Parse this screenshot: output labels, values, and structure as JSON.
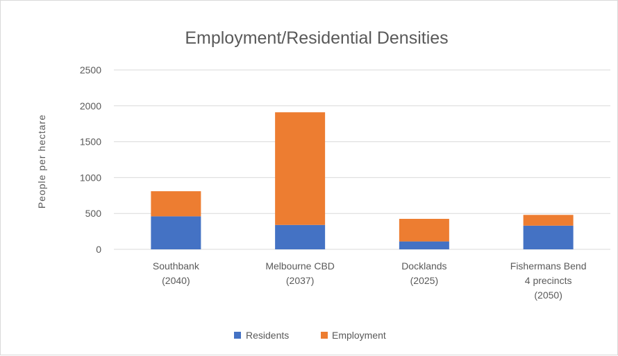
{
  "chart_data": {
    "type": "bar",
    "stacked": true,
    "title": "Employment/Residential Densities",
    "xlabel": "",
    "ylabel": "People per hectare",
    "ylim": [
      0,
      2500
    ],
    "yticks": [
      0,
      500,
      1000,
      1500,
      2000,
      2500
    ],
    "grid": true,
    "legend_position": "bottom",
    "categories": [
      [
        "Southbank",
        "(2040)"
      ],
      [
        "Melbourne CBD",
        "(2037)"
      ],
      [
        "Docklands",
        "(2025)"
      ],
      [
        "Fishermans Bend",
        "4 precincts",
        "(2050)"
      ]
    ],
    "series": [
      {
        "name": "Residents",
        "color": "#4472c4",
        "values": [
          460,
          340,
          110,
          330
        ]
      },
      {
        "name": "Employment",
        "color": "#ed7d31",
        "values": [
          350,
          1570,
          315,
          150
        ]
      }
    ]
  }
}
